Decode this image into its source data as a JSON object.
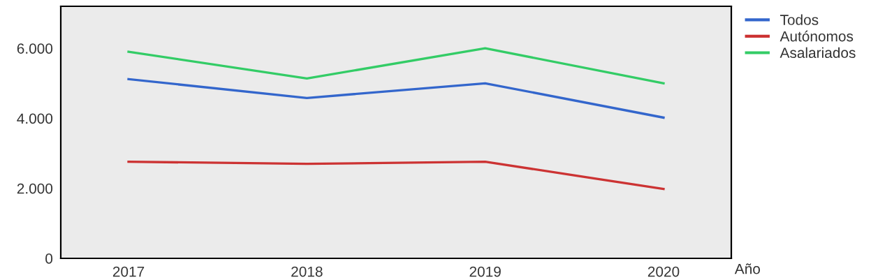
{
  "chart_data": {
    "type": "line",
    "xlabel": "Año",
    "x": [
      2017,
      2018,
      2019,
      2020
    ],
    "xlim": [
      2016.62,
      2020.38
    ],
    "xticks": [
      2017,
      2018,
      2019,
      2020
    ],
    "ylim": [
      0,
      7200
    ],
    "yticks": [
      {
        "value": 0,
        "label": "0"
      },
      {
        "value": 2000,
        "label": "2.000"
      },
      {
        "value": 4000,
        "label": "4.000"
      },
      {
        "value": 6000,
        "label": "6.000"
      }
    ],
    "grid": false,
    "legend": "top right",
    "marker": "none",
    "line_style": "solid",
    "series": [
      {
        "name": "Todos",
        "color": "#3366cc",
        "values": [
          5120,
          4580,
          5000,
          4020
        ]
      },
      {
        "name": "Autónomos",
        "color": "#cc3333",
        "values": [
          2760,
          2700,
          2760,
          1980
        ]
      },
      {
        "name": "Asalariados",
        "color": "#33cc66",
        "values": [
          5900,
          5140,
          6000,
          5000
        ]
      }
    ]
  }
}
